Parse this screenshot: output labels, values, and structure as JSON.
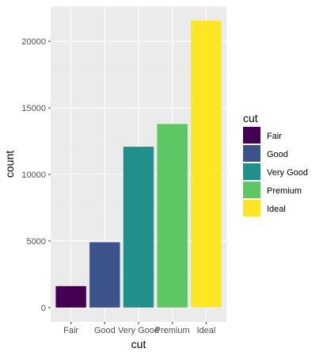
{
  "chart_data": {
    "type": "bar",
    "categories": [
      "Fair",
      "Good",
      "Very Good",
      "Premium",
      "Ideal"
    ],
    "values": [
      1610,
      4906,
      12082,
      13791,
      21551
    ],
    "colors": [
      "#440154",
      "#3B528B",
      "#21908C",
      "#5DC863",
      "#FDE725"
    ],
    "xlabel": "cut",
    "ylabel": "count",
    "ylim": [
      -1080,
      22630
    ],
    "yticks": [
      0,
      5000,
      10000,
      15000,
      20000
    ],
    "ytick_labels": [
      "0",
      "5000",
      "10000",
      "15000",
      "20000"
    ],
    "legend": {
      "title": "cut",
      "placement": "right",
      "entries": [
        "Fair",
        "Good",
        "Very Good",
        "Premium",
        "Ideal"
      ]
    },
    "grid": true,
    "background": "#EBEBEB"
  }
}
